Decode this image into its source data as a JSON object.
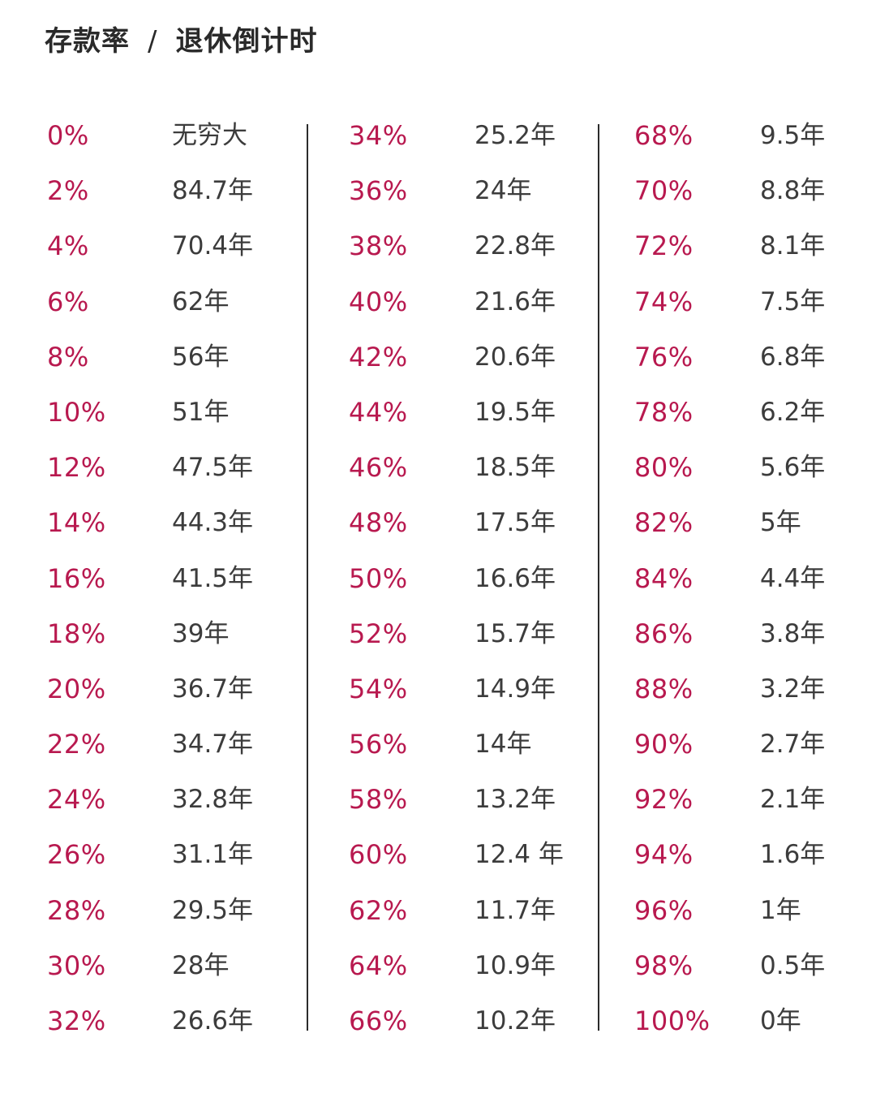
{
  "header": {
    "title_left": "存款率",
    "separator": "/",
    "title_right": "退休倒计时"
  },
  "columns": [
    {
      "rows": [
        {
          "rate": "0%",
          "years": "无穷大"
        },
        {
          "rate": "2%",
          "years": "84.7年"
        },
        {
          "rate": "4%",
          "years": "70.4年"
        },
        {
          "rate": "6%",
          "years": "62年"
        },
        {
          "rate": "8%",
          "years": "56年"
        },
        {
          "rate": "10%",
          "years": "51年"
        },
        {
          "rate": "12%",
          "years": "47.5年"
        },
        {
          "rate": "14%",
          "years": "44.3年"
        },
        {
          "rate": "16%",
          "years": "41.5年"
        },
        {
          "rate": "18%",
          "years": "39年"
        },
        {
          "rate": "20%",
          "years": "36.7年"
        },
        {
          "rate": "22%",
          "years": "34.7年"
        },
        {
          "rate": "24%",
          "years": "32.8年"
        },
        {
          "rate": "26%",
          "years": "31.1年"
        },
        {
          "rate": "28%",
          "years": "29.5年"
        },
        {
          "rate": "30%",
          "years": "28年"
        },
        {
          "rate": "32%",
          "years": "26.6年"
        }
      ]
    },
    {
      "rows": [
        {
          "rate": "34%",
          "years": "25.2年"
        },
        {
          "rate": "36%",
          "years": "24年"
        },
        {
          "rate": "38%",
          "years": "22.8年"
        },
        {
          "rate": "40%",
          "years": "21.6年"
        },
        {
          "rate": "42%",
          "years": "20.6年"
        },
        {
          "rate": "44%",
          "years": "19.5年"
        },
        {
          "rate": "46%",
          "years": "18.5年"
        },
        {
          "rate": "48%",
          "years": "17.5年"
        },
        {
          "rate": "50%",
          "years": "16.6年"
        },
        {
          "rate": "52%",
          "years": "15.7年"
        },
        {
          "rate": "54%",
          "years": "14.9年"
        },
        {
          "rate": "56%",
          "years": "14年"
        },
        {
          "rate": "58%",
          "years": "13.2年"
        },
        {
          "rate": "60%",
          "years": "12.4 年"
        },
        {
          "rate": "62%",
          "years": "11.7年"
        },
        {
          "rate": "64%",
          "years": "10.9年"
        },
        {
          "rate": "66%",
          "years": "10.2年"
        }
      ]
    },
    {
      "rows": [
        {
          "rate": "68%",
          "years": "9.5年"
        },
        {
          "rate": "70%",
          "years": "8.8年"
        },
        {
          "rate": "72%",
          "years": "8.1年"
        },
        {
          "rate": "74%",
          "years": "7.5年"
        },
        {
          "rate": "76%",
          "years": "6.8年"
        },
        {
          "rate": "78%",
          "years": "6.2年"
        },
        {
          "rate": "80%",
          "years": "5.6年"
        },
        {
          "rate": "82%",
          "years": "5年"
        },
        {
          "rate": "84%",
          "years": "4.4年"
        },
        {
          "rate": "86%",
          "years": "3.8年"
        },
        {
          "rate": "88%",
          "years": "3.2年"
        },
        {
          "rate": "90%",
          "years": "2.7年"
        },
        {
          "rate": "92%",
          "years": "2.1年"
        },
        {
          "rate": "94%",
          "years": "1.6年"
        },
        {
          "rate": "96%",
          "years": "1年"
        },
        {
          "rate": "98%",
          "years": "0.5年"
        },
        {
          "rate": "100%",
          "years": "0年"
        }
      ]
    }
  ],
  "colors": {
    "rate_text": "#b8194f",
    "years_text": "#3c3c3c",
    "title_text": "#2a2a2a",
    "divider": "#2b2b2b",
    "background": "#ffffff"
  }
}
